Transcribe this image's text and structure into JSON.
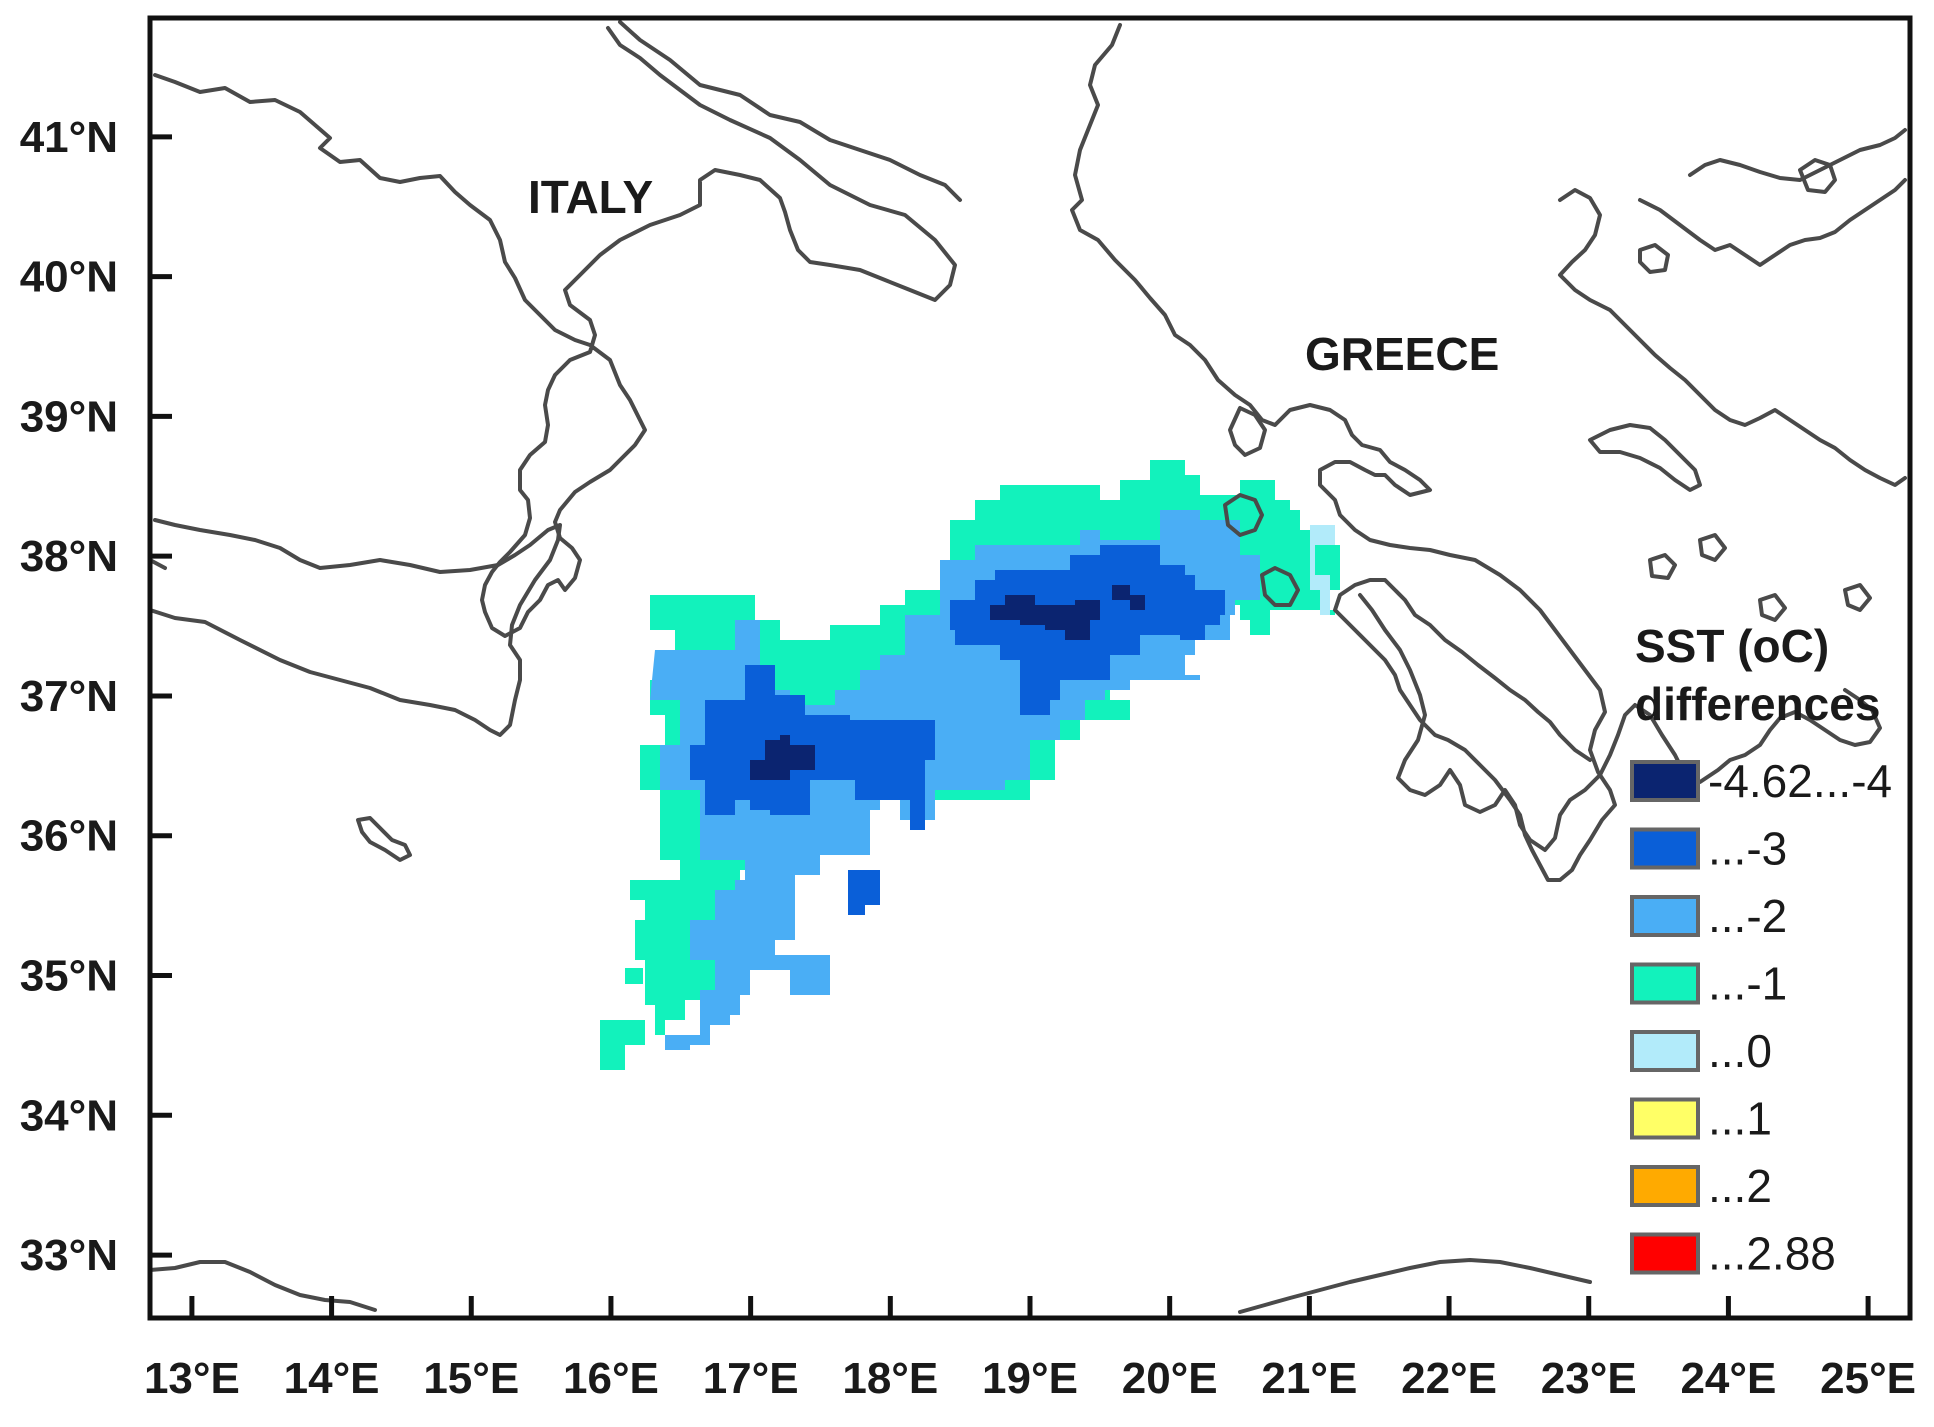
{
  "map": {
    "country_labels": {
      "italy": "ITALY",
      "greece": "GREECE"
    },
    "lon_ticks": [
      "13°E",
      "14°E",
      "15°E",
      "16°E",
      "17°E",
      "18°E",
      "19°E",
      "20°E",
      "21°E",
      "22°E",
      "23°E",
      "24°E",
      "25°E"
    ],
    "lat_ticks": [
      "41°N",
      "40°N",
      "39°N",
      "38°N",
      "37°N",
      "36°N",
      "35°N",
      "34°N",
      "33°N"
    ],
    "lon_range": [
      12.7,
      25.3
    ],
    "lat_range": [
      32.55,
      41.85
    ],
    "legend": {
      "title_line1": "SST (oC)",
      "title_line2": "differences",
      "items": [
        {
          "label": "-4.62...-4",
          "color": "#0b2470"
        },
        {
          "label": "...-3",
          "color": "#0a5fd8"
        },
        {
          "label": "...-2",
          "color": "#4aaef5"
        },
        {
          "label": "...-1",
          "color": "#12f2bc"
        },
        {
          "label": "...0",
          "color": "#b2ebfa"
        },
        {
          "label": "...1",
          "color": "#ffff66"
        },
        {
          "label": "...2",
          "color": "#ffaa00"
        },
        {
          "label": "...2.88",
          "color": "#ff0000"
        }
      ]
    }
  }
}
